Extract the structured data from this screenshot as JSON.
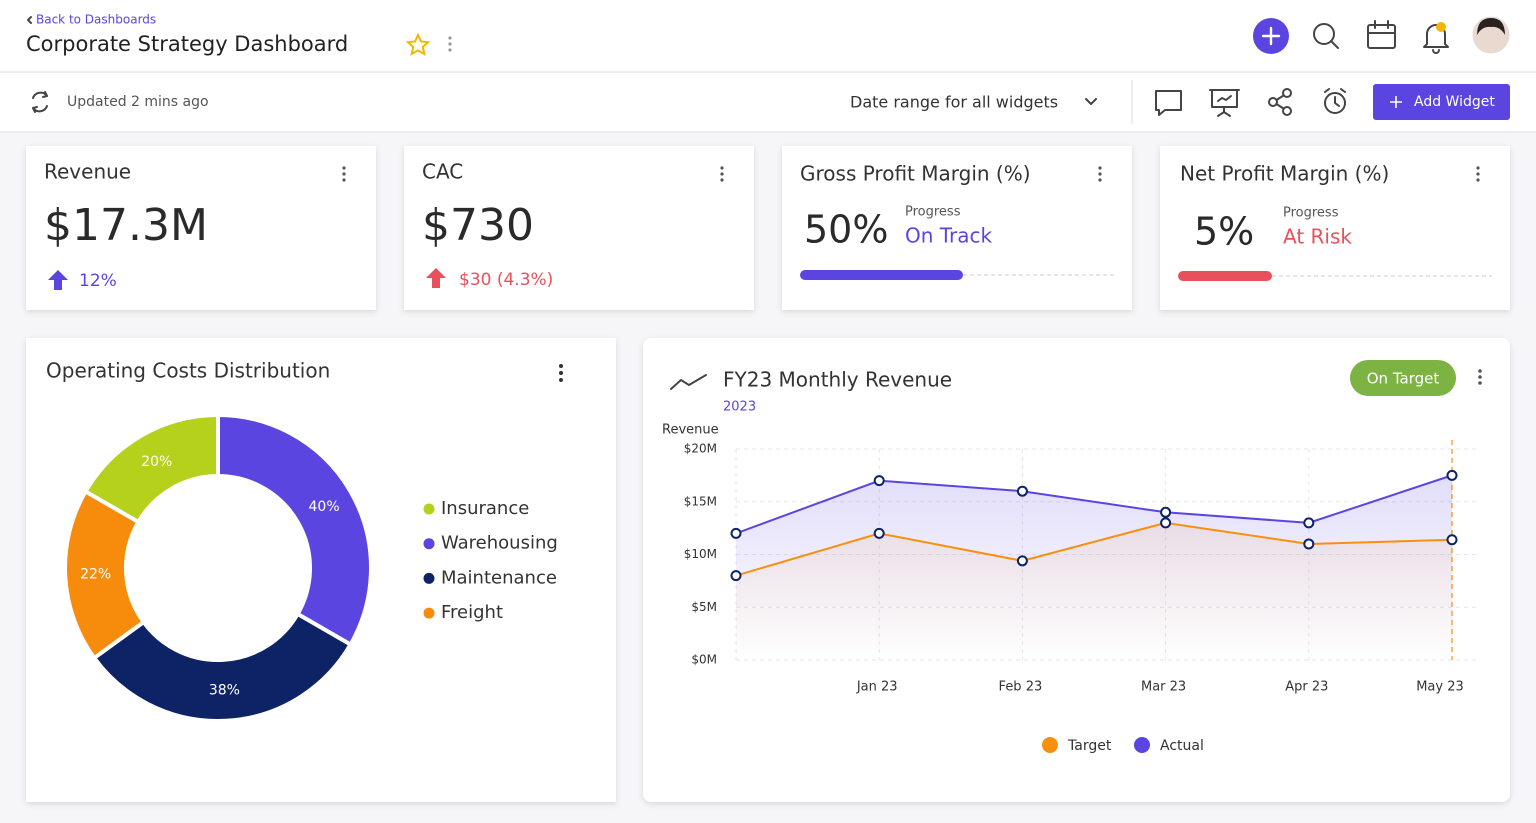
{
  "header": {
    "back": "Back to Dashboards",
    "title": "Corporate Strategy Dashboard"
  },
  "toolbar": {
    "updated": "Updated 2 mins ago",
    "date_range": "Date range for all widgets",
    "add_widget": "Add Widget"
  },
  "kpis": [
    {
      "title": "Revenue",
      "value": "$17.3M",
      "change": "12%"
    },
    {
      "title": "CAC",
      "value": "$730",
      "change": "$30 (4.3%)"
    },
    {
      "title": "Gross Profit Margin (%)",
      "value": "50%",
      "progress_label": "Progress",
      "status": "On Track"
    },
    {
      "title": "Net Profit Margin (%)",
      "value": "5%",
      "progress_label": "Progress",
      "status": "At Risk"
    }
  ],
  "chart_data": [
    {
      "type": "donut",
      "title": "Operating Costs Distribution",
      "categories": [
        "Insurance",
        "Warehousing",
        "Maintenance",
        "Freight"
      ],
      "values": [
        20,
        40,
        38,
        22
      ],
      "value_labels": [
        "20%",
        "40%",
        "38%",
        "22%"
      ],
      "colors": [
        "#b5d11c",
        "#5b45e0",
        "#0d2366",
        "#f78c0c"
      ]
    },
    {
      "type": "line",
      "title": "FY23 Monthly Revenue",
      "subtitle": "2023",
      "badge": "On Target",
      "y_label": "Revenue",
      "categories": [
        null,
        "Jan 23",
        "Feb 23",
        "Mar 23",
        "Apr 23",
        "May 23"
      ],
      "series": [
        {
          "name": "Target",
          "color": "#f7900f",
          "values": [
            8,
            12,
            9.4,
            13,
            11,
            11.4
          ]
        },
        {
          "name": "Actual",
          "color": "#5b45e0",
          "values": [
            12,
            17,
            16,
            14,
            13,
            17.5
          ]
        }
      ],
      "ylim": [
        0,
        20
      ],
      "yticks": [
        {
          "value": 0,
          "label": "$0M"
        },
        {
          "value": 5,
          "label": "$5M"
        },
        {
          "value": 10,
          "label": "$10M"
        },
        {
          "value": 15,
          "label": "$15M"
        },
        {
          "value": 20,
          "label": "$20M"
        }
      ],
      "grid": true
    }
  ]
}
